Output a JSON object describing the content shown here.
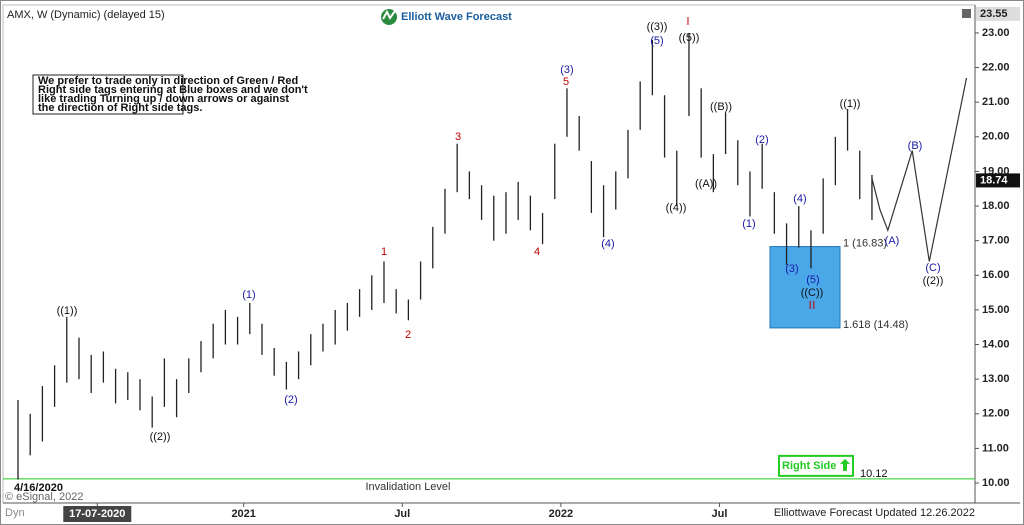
{
  "chart_data": {
    "type": "range_bar",
    "title": "AMX, W (Dynamic) (delayed 15)",
    "brand": "Elliott Wave Forecast",
    "disclaimer": [
      "We prefer to trade only in direction of Green / Red",
      "Right side tags entering at Blue boxes and we don't",
      "like trading Turning up / down arrows or against",
      "the direction of Right side tags."
    ],
    "start_date": "4/16/2020",
    "footer": "Elliottwave Forecast Updated 12.26.2022",
    "copyright": "© eSignal, 2022",
    "dyn": "Dyn",
    "xlim": [
      -2.95,
      156.4
    ],
    "xticks": [
      {
        "value": 13,
        "label": "17-07-2020"
      },
      {
        "value": 37,
        "label": "2021"
      },
      {
        "value": 63,
        "label": "Jul"
      },
      {
        "value": 89,
        "label": "2022"
      },
      {
        "value": 115,
        "label": "Jul"
      }
    ],
    "ylim": [
      9.51,
      23.72
    ],
    "yticks": [
      {
        "value": 10,
        "label": "10.00"
      },
      {
        "value": 11,
        "label": "11.00"
      },
      {
        "value": 12,
        "label": "12.00"
      },
      {
        "value": 13,
        "label": "13.00"
      },
      {
        "value": 14,
        "label": "14.00"
      },
      {
        "value": 15,
        "label": "15.00"
      },
      {
        "value": 16,
        "label": "16.00"
      },
      {
        "value": 17,
        "label": "17.00"
      },
      {
        "value": 18,
        "label": "18.00"
      },
      {
        "value": 19,
        "label": "19.00"
      },
      {
        "value": 20,
        "label": "20.00"
      },
      {
        "value": 21,
        "label": "21.00"
      },
      {
        "value": 22,
        "label": "22.00"
      },
      {
        "value": 23,
        "label": "23.00"
      }
    ],
    "top_price": {
      "value": 23.55,
      "label": "23.55"
    },
    "last_price": {
      "value": 18.74,
      "label": "18.74"
    },
    "color": "#222222",
    "bars": {
      "x": [
        0,
        2,
        4,
        6,
        8,
        10,
        12,
        14,
        16,
        18,
        20,
        22,
        24,
        26,
        28,
        30,
        32,
        34,
        36,
        38,
        40,
        42,
        44,
        46,
        48,
        50,
        52,
        54,
        56,
        58,
        60,
        62,
        64,
        66,
        68,
        70,
        72,
        74,
        76,
        78,
        80,
        82,
        84,
        86,
        88,
        90,
        92,
        94,
        96,
        98,
        100,
        102,
        104,
        106,
        108,
        110,
        112,
        114,
        116,
        118,
        120,
        122,
        124,
        126,
        128,
        130,
        132,
        134,
        136,
        138,
        140
      ],
      "high": [
        12.4,
        12.0,
        12.8,
        13.4,
        14.8,
        14.2,
        13.7,
        13.8,
        13.3,
        13.2,
        13.0,
        12.5,
        13.6,
        13.0,
        13.6,
        14.1,
        14.6,
        15.0,
        14.8,
        15.2,
        14.6,
        13.9,
        13.5,
        13.8,
        14.3,
        14.6,
        15.0,
        15.2,
        15.6,
        16.0,
        16.4,
        15.6,
        15.3,
        16.4,
        17.4,
        18.5,
        19.8,
        19.0,
        18.6,
        18.3,
        18.4,
        18.7,
        18.3,
        17.8,
        19.8,
        21.4,
        20.6,
        19.3,
        18.6,
        19.0,
        20.2,
        21.6,
        22.8,
        21.2,
        19.6,
        23.0,
        21.4,
        19.5,
        20.7,
        19.9,
        19.0,
        19.8,
        18.4,
        17.5,
        18.0,
        17.3,
        18.8,
        20.0,
        20.8,
        19.6,
        18.9
      ],
      "low": [
        10.1,
        10.8,
        11.2,
        12.2,
        12.9,
        13.0,
        12.6,
        12.9,
        12.3,
        12.4,
        12.1,
        11.6,
        12.2,
        11.9,
        12.6,
        13.2,
        13.6,
        14.0,
        14.0,
        14.3,
        13.7,
        13.1,
        12.7,
        13.0,
        13.4,
        13.8,
        14.0,
        14.4,
        14.8,
        15.0,
        15.2,
        14.9,
        14.7,
        15.3,
        16.2,
        17.2,
        18.4,
        18.2,
        17.6,
        17.0,
        17.2,
        17.6,
        17.3,
        16.9,
        18.2,
        20.0,
        19.6,
        17.8,
        17.1,
        17.9,
        18.8,
        20.2,
        21.2,
        19.4,
        18.0,
        20.6,
        19.4,
        18.4,
        19.5,
        18.6,
        17.7,
        18.5,
        17.2,
        16.3,
        16.8,
        16.2,
        17.2,
        18.6,
        19.6,
        18.2,
        17.6
      ]
    },
    "projection": {
      "color": "#333333",
      "x": [
        140,
        141.3,
        142.6,
        146.6,
        149.4,
        155.5
      ],
      "values": [
        18.8,
        17.9,
        17.3,
        19.6,
        16.4,
        21.7
      ]
    },
    "blue_box": {
      "color": "#4aa8e8",
      "top": {
        "value": 16.83,
        "label": "1 (16.83)"
      },
      "bottom": {
        "value": 14.48,
        "label": "1.618 (14.48)"
      }
    },
    "invalidation": {
      "value": 10.12,
      "label": "10.12",
      "text": "Invalidation Level",
      "tag": "Right Side",
      "color": "#22cc22"
    },
    "wave_labels": [
      {
        "text": "((1))",
        "color": "#111111"
      },
      {
        "text": "((2))",
        "color": "#111111"
      },
      {
        "text": "(1)",
        "color": "#1a1aa6"
      },
      {
        "text": "(2)",
        "color": "#1a1aa6"
      },
      {
        "text": "1",
        "color": "#c00000"
      },
      {
        "text": "2",
        "color": "#c00000"
      },
      {
        "text": "3",
        "color": "#c00000"
      },
      {
        "text": "4",
        "color": "#c00000"
      },
      {
        "text": "5",
        "color": "#c00000"
      },
      {
        "text": "(3)",
        "color": "#1a1aa6"
      },
      {
        "text": "(4)",
        "color": "#1a1aa6"
      },
      {
        "text": "((3))",
        "color": "#111111"
      },
      {
        "text": "(5)",
        "color": "#1a1aa6"
      },
      {
        "text": "I",
        "color": "#c00000"
      },
      {
        "text": "((5))",
        "color": "#111111"
      },
      {
        "text": "((4))",
        "color": "#111111"
      },
      {
        "text": "((A))",
        "color": "#111111"
      },
      {
        "text": "((B))",
        "color": "#111111"
      },
      {
        "text": "(1)",
        "color": "#1a1aa6"
      },
      {
        "text": "(2)",
        "color": "#1a1aa6"
      },
      {
        "text": "(3)",
        "color": "#1a1aa6"
      },
      {
        "text": "(4)",
        "color": "#1a1aa6"
      },
      {
        "text": "(5)",
        "color": "#1a1aa6"
      },
      {
        "text": "((C))",
        "color": "#111111"
      },
      {
        "text": "II",
        "color": "#c00000"
      },
      {
        "text": "((1))",
        "color": "#111111"
      },
      {
        "text": "(A)",
        "color": "#1a1aa6"
      },
      {
        "text": "(B)",
        "color": "#1a1aa6"
      },
      {
        "text": "(C)",
        "color": "#1a1aa6"
      },
      {
        "text": "((2))",
        "color": "#111111"
      }
    ]
  }
}
